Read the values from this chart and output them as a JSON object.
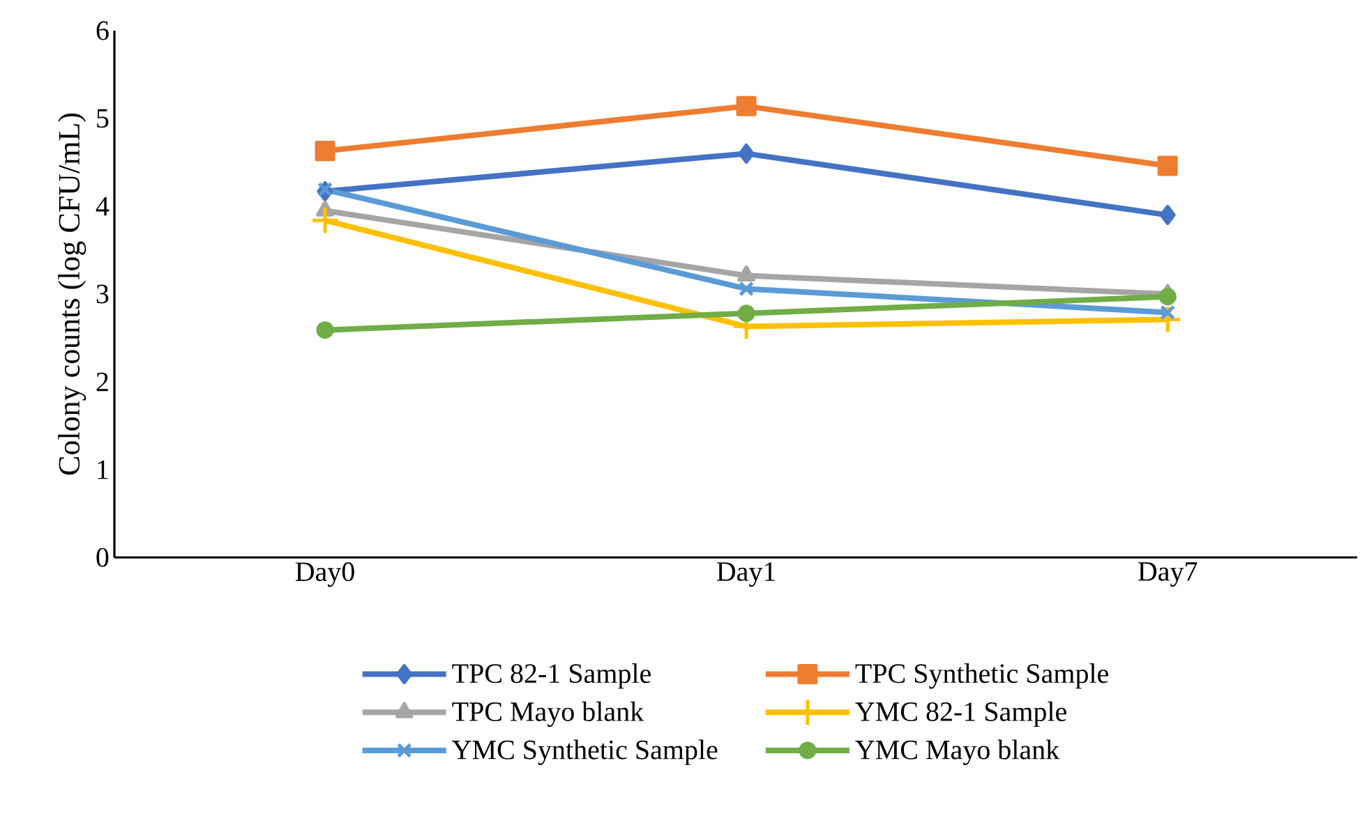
{
  "chart_data": {
    "type": "line",
    "ylabel": "Colony counts (log CFU/mL)",
    "categories": [
      "Day0",
      "Day1",
      "Day7"
    ],
    "series": [
      {
        "name": "TPC 82-1 Sample",
        "color": "#4472c4",
        "marker": "diamond",
        "values": [
          4.17,
          4.6,
          3.9
        ]
      },
      {
        "name": "TPC Synthetic Sample",
        "color": "#ed7d31",
        "marker": "square",
        "values": [
          4.63,
          5.14,
          4.46
        ]
      },
      {
        "name": "TPC Mayo blank",
        "color": "#a5a5a5",
        "marker": "triangle",
        "values": [
          3.95,
          3.21,
          3.0
        ]
      },
      {
        "name": "YMC 82-1 Sample",
        "color": "#ffc000",
        "marker": "plus",
        "values": [
          3.84,
          2.63,
          2.71
        ]
      },
      {
        "name": "YMC Synthetic Sample",
        "color": "#5b9bd5",
        "marker": "cross",
        "values": [
          4.19,
          3.06,
          2.79
        ]
      },
      {
        "name": "YMC Mayo blank",
        "color": "#70ad47",
        "marker": "circle",
        "values": [
          2.59,
          2.78,
          2.97
        ]
      }
    ],
    "ylim": [
      0,
      6
    ],
    "yticks": [
      0,
      1,
      2,
      3,
      4,
      5,
      6
    ],
    "grid": false,
    "legend": "bottom",
    "line_style": "solid"
  }
}
